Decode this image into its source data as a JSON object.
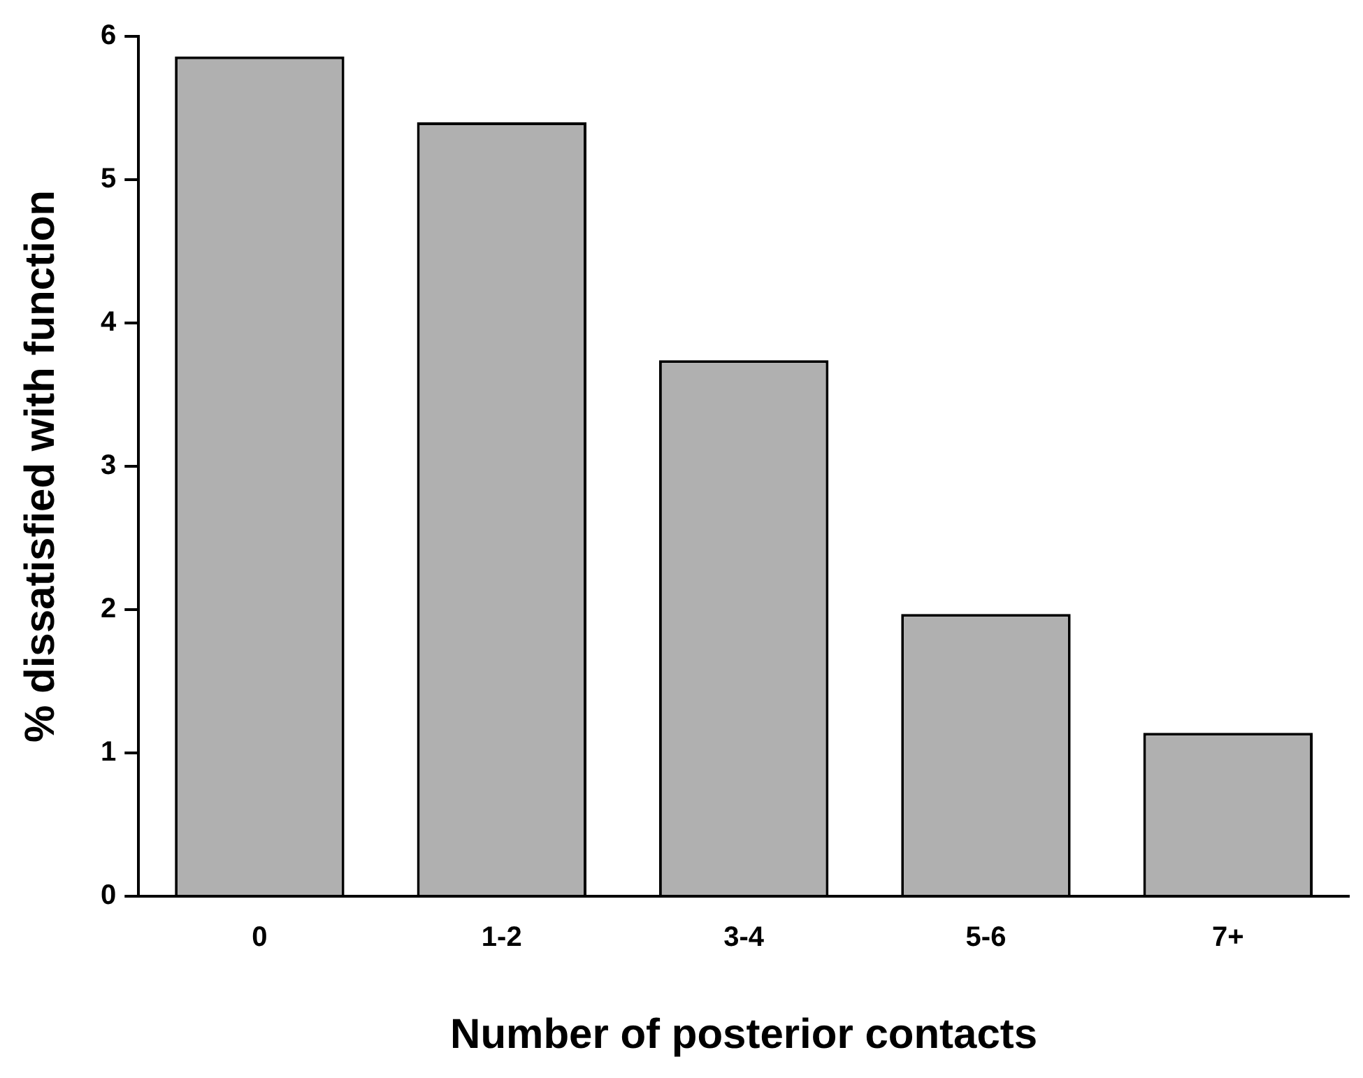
{
  "chart_data": {
    "type": "bar",
    "xlabel": "Number of posterior contacts",
    "ylabel": "% dissatisfied with function",
    "categories": [
      "0",
      "1-2",
      "3-4",
      "5-6",
      "7+"
    ],
    "values": [
      5.86,
      5.4,
      3.74,
      1.97,
      1.14
    ],
    "color": "#b0b0b0",
    "ylim": [
      0,
      6
    ],
    "yticks": [
      0,
      1,
      2,
      3,
      4,
      5,
      6
    ],
    "grid": false,
    "legend": false
  }
}
